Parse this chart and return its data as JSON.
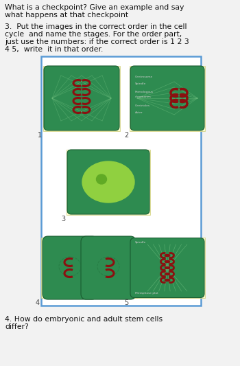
{
  "bg_color": "#f2f2f2",
  "border_color": "#5b9bd5",
  "cell_bg": "#2e8b50",
  "cell_light": "#90d040",
  "card_bg": "#ffffcc",
  "chrom_color": "#8b1010",
  "text_color": "#111111",
  "line1": "What is a checkpoint? Give an example and say",
  "line2": "what happens at that checkpoint",
  "line3": "3.  Put the images in the correct order in the cell",
  "line4": "cycle  and name the stages. For the order part,",
  "line5": "just use the numbers: if the correct order is 1 2 3",
  "line6": "4 5,  write  it in that order.",
  "line7": "4. How do embryonic and adult stem cells",
  "line8": "differ?",
  "img_labels": [
    "1",
    "2",
    "3",
    "4",
    "5"
  ],
  "lbl2_texts": [
    "Centrosome",
    "Spindle",
    "Homologous",
    "chromones",
    "Centrioles",
    "Aster"
  ],
  "lbl5_texts": [
    "Spindle",
    "Metaphase plat"
  ]
}
